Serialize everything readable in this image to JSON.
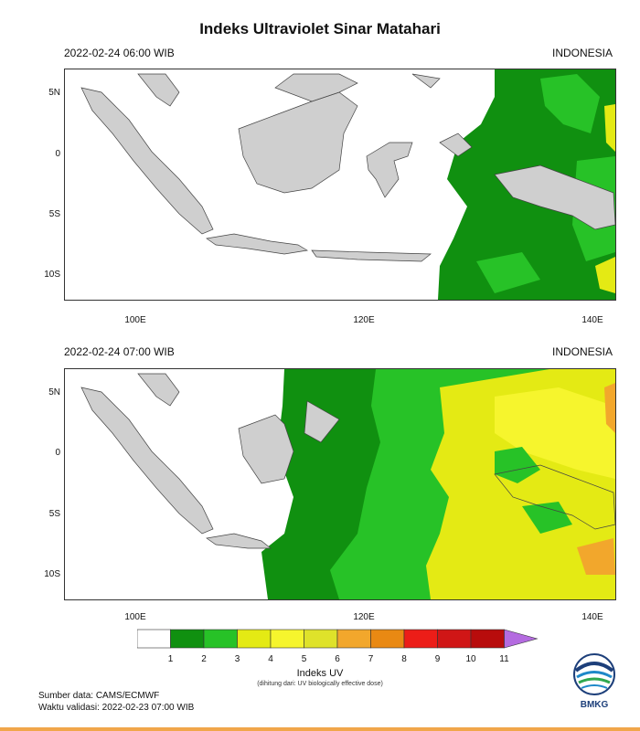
{
  "title": "Indeks Ultraviolet Sinar Matahari",
  "panels": [
    {
      "date": "2022-02-24  06:00 WIB",
      "region": "INDONESIA"
    },
    {
      "date": "2022-02-24  07:00 WIB",
      "region": "INDONESIA"
    }
  ],
  "axes": {
    "y_labels": [
      "5N",
      "0",
      "5S",
      "10S"
    ],
    "x_labels": [
      "100E",
      "120E",
      "140E"
    ]
  },
  "legend": {
    "ticks": [
      "1",
      "2",
      "3",
      "4",
      "5",
      "6",
      "7",
      "8",
      "9",
      "10",
      "11"
    ],
    "colors": [
      "#ffffff",
      "#109010",
      "#27c227",
      "#e4ea14",
      "#f6f52d",
      "#dfe22a",
      "#f2a72c",
      "#e98913",
      "#ec1d18",
      "#d01616",
      "#b80c0c",
      "#b46be0"
    ],
    "title": "Indeks UV",
    "subtitle": "(dihitung dari: UV biologically effective dose)"
  },
  "footer": {
    "source": "Sumber data: CAMS/ECMWF",
    "validity": "Waktu validasi: 2022-02-23 07:00 WIB"
  },
  "logo_text": "BMKG"
}
